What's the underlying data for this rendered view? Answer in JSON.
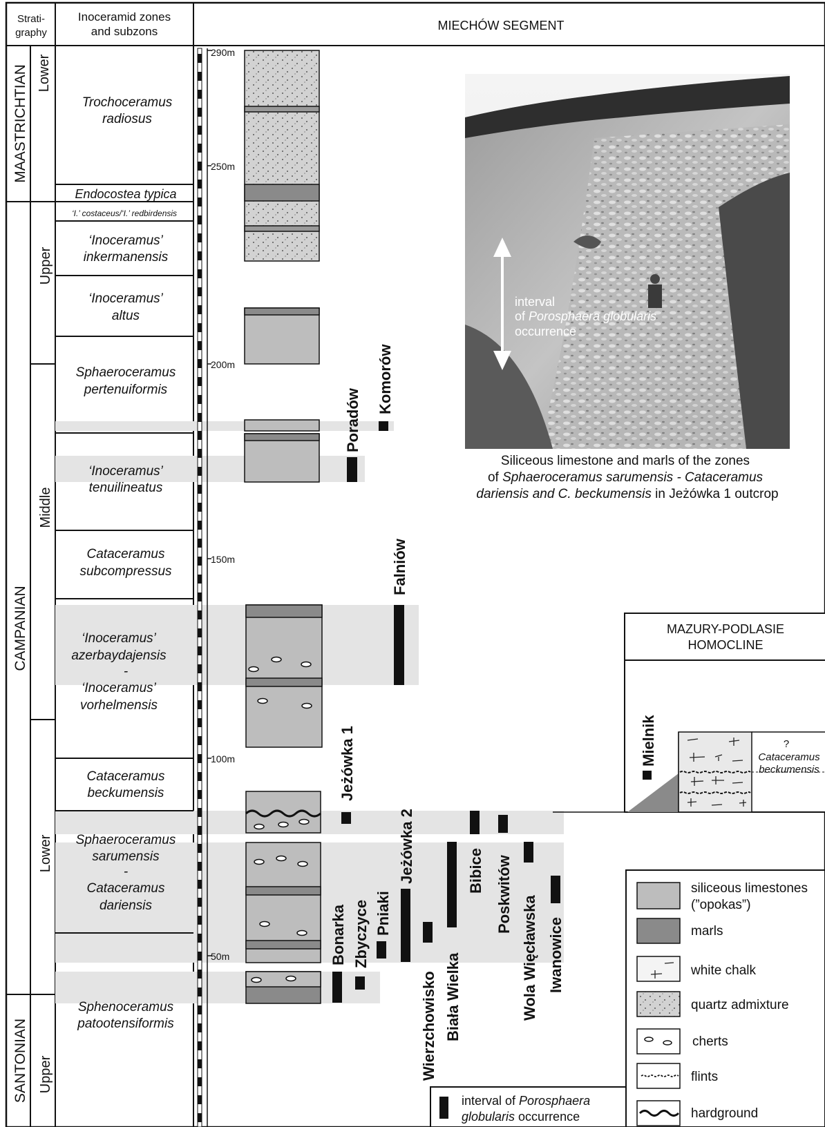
{
  "header": {
    "stratigraphy": [
      "Strati-",
      "graphy"
    ],
    "zones": [
      "Inoceramid zones",
      "and subzons"
    ],
    "segment": "MIECHÓW SEGMENT"
  },
  "stages": {
    "maastrichtian": "MAASTRICHTIAN",
    "campanian": "CAMPANIAN",
    "santonian": "SANTONIAN"
  },
  "substages": {
    "maas_lower": "Lower",
    "camp_upper": "Upper",
    "camp_middle": "Middle",
    "camp_lower": "Lower",
    "sant_upper": "Upper"
  },
  "zones": {
    "z1": [
      "Trochoceramus",
      "radiosus"
    ],
    "z2": "Endocostea typica",
    "z3": "‘I.’ costaceus/‘I.’ redbirdensis",
    "z4": [
      "‘Inoceramus’",
      "inkermanensis"
    ],
    "z5": [
      "‘Inoceramus’",
      "altus"
    ],
    "z6": [
      "Sphaeroceramus",
      "pertenuiformis"
    ],
    "z7": [
      "‘Inoceramus’",
      "tenuilineatus"
    ],
    "z8": [
      "Cataceramus",
      "subcompressus"
    ],
    "z9": [
      "‘Inoceramus’",
      "azerbaydajensis",
      "-",
      "‘Inoceramus’",
      "vorhelmensis"
    ],
    "z10": [
      "Cataceramus",
      "beckumensis"
    ],
    "z11": [
      "Sphaeroceramus",
      "sarumensis",
      "-",
      "Cataceramus",
      "dariensis"
    ],
    "z12": [
      "Sphenoceramus",
      "patootensiformis"
    ]
  },
  "scale": {
    "m290": "290m",
    "m250": "250m",
    "m200": "200m",
    "m150": "150m",
    "m100": "100m",
    "m50": "50m"
  },
  "localities": {
    "komorow": "Komorów",
    "poradow": "Poradów",
    "falniow": "Falniów",
    "jezowka1": "Jeżówka 1",
    "jezowka2": "Jeżówka 2",
    "bonarka": "Bonarka",
    "zbyczyce": "Zbyczyce",
    "pniaki": "Pniaki",
    "wierzchowisko": "Wierzchowisko",
    "biala_wielka": "Biała Wielka",
    "bibice": "Bibice",
    "poskwitow": "Poskwitów",
    "wola_wieclawska": "Wola Więcławska",
    "iwanowice": "Iwanowice",
    "mielnik": "Mielnik"
  },
  "photo": {
    "label_line1": "interval",
    "label_of": "of ",
    "label_species": "Porosphaera globularis",
    "label_line3": "occurrence",
    "caption_line1": "Siliceous limestone and marls of the zones",
    "caption_of": "of ",
    "caption_species1": "Sphaeroceramus sarumensis - Cataceramus",
    "caption_species2": "dariensis and C. beckumensis",
    "caption_tail": " in Jeżówka 1 outcrop"
  },
  "mazury": {
    "title1": "MAZURY-PODLASIE",
    "title2": "HOMOCLINE",
    "question": "?",
    "zone1": "Cataceramus",
    "zone2": "beckumensis"
  },
  "legend": {
    "siliceous1": "siliceous limestones",
    "siliceous2": "(”opokas”)",
    "marls": "marls",
    "chalk": "white chalk",
    "quartz": "quartz admixture",
    "cherts": "cherts",
    "flints": "flints",
    "hardground": "hardground",
    "interval_of": "interval of ",
    "interval_species1": "Porosphaera",
    "interval_species2": "globularis",
    "interval_tail": " occurrence"
  },
  "colors": {
    "opoka": "#bdbdbd",
    "marl": "#8a8a8a",
    "band": "#e4e4e4"
  }
}
